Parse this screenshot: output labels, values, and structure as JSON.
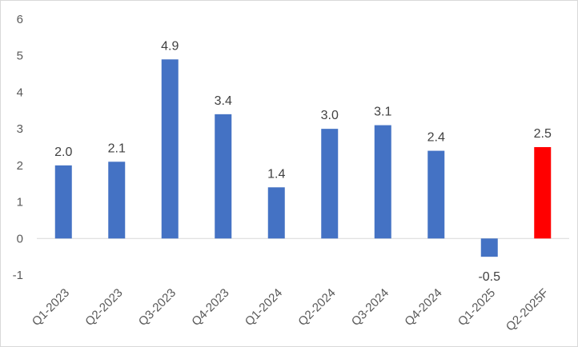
{
  "chart_data": {
    "type": "bar",
    "title": "",
    "xlabel": "",
    "ylabel": "",
    "categories": [
      "Q1-2023",
      "Q2-2023",
      "Q3-2023",
      "Q4-2023",
      "Q1-2024",
      "Q2-2024",
      "Q3-2024",
      "Q4-2024",
      "Q1-2025",
      "Q2-2025F"
    ],
    "values": [
      2.0,
      2.1,
      4.9,
      3.4,
      1.4,
      3.0,
      3.1,
      2.4,
      -0.5,
      2.5
    ],
    "data_labels": [
      "2.0",
      "2.1",
      "4.9",
      "3.4",
      "1.4",
      "3.0",
      "3.1",
      "2.4",
      "-0.5",
      "2.5"
    ],
    "yticks": [
      "-1",
      "0",
      "1",
      "2",
      "3",
      "4",
      "5",
      "6"
    ],
    "ylim": [
      -1,
      6
    ],
    "grid": false,
    "legend": "none",
    "colors": {
      "bar": "#4472c4",
      "forecast_bar": "#ff0000",
      "axis": "#d9d9d9",
      "text": "#595959"
    },
    "highlighted_category": "Q2-2025F"
  }
}
